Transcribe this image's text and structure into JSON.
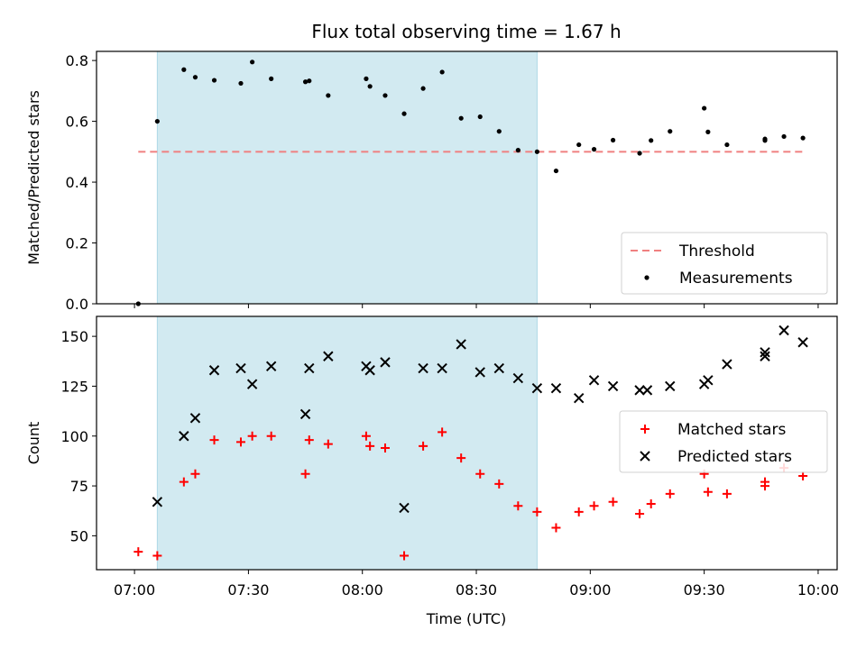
{
  "chart_data": {
    "title": "Flux total observing time = 1.67 h",
    "xlabel": "Time (UTC)",
    "xlim": [
      "06:50",
      "10:05"
    ],
    "x_ticks": [
      "07:00",
      "07:30",
      "08:00",
      "08:30",
      "09:00",
      "09:30",
      "10:00"
    ],
    "shaded_span": {
      "from": "07:06",
      "to": "08:46",
      "color": "#add8e6"
    },
    "panels": [
      {
        "type": "scatter",
        "ylabel": "Matched/Predicted stars",
        "ylim": [
          0,
          0.83
        ],
        "y_ticks": [
          "0.0",
          "0.2",
          "0.4",
          "0.6",
          "0.8"
        ],
        "legend_position": "lower-right",
        "threshold": {
          "name": "Threshold",
          "value": 0.5,
          "from": "07:01",
          "to": "09:57",
          "color": "#f08080",
          "style": "dashed"
        },
        "series": [
          {
            "name": "Measurements",
            "color": "#000000",
            "marker": "dot",
            "x": [
              "07:01",
              "07:06",
              "07:13",
              "07:16",
              "07:21",
              "07:28",
              "07:31",
              "07:36",
              "07:45",
              "07:46",
              "07:51",
              "08:01",
              "08:02",
              "08:06",
              "08:11",
              "08:16",
              "08:21",
              "08:26",
              "08:31",
              "08:36",
              "08:41",
              "08:46",
              "08:51",
              "08:57",
              "09:01",
              "09:06",
              "09:13",
              "09:16",
              "09:21",
              "09:30",
              "09:31",
              "09:36",
              "09:46",
              "09:46",
              "09:51",
              "09:56"
            ],
            "y": [
              0.0,
              0.6,
              0.77,
              0.745,
              0.735,
              0.725,
              0.795,
              0.74,
              0.73,
              0.733,
              0.685,
              0.74,
              0.715,
              0.685,
              0.625,
              0.708,
              0.762,
              0.61,
              0.615,
              0.567,
              0.505,
              0.5,
              0.437,
              0.523,
              0.508,
              0.538,
              0.495,
              0.537,
              0.567,
              0.643,
              0.565,
              0.523,
              0.542,
              0.537,
              0.55,
              0.545
            ]
          }
        ]
      },
      {
        "type": "scatter",
        "ylabel": "Count",
        "ylim": [
          33,
          160
        ],
        "y_ticks": [
          "50",
          "75",
          "100",
          "125",
          "150"
        ],
        "legend_position": "center-right",
        "series": [
          {
            "name": "Matched stars",
            "color": "#ff0000",
            "marker": "plus",
            "x": [
              "07:01",
              "07:06",
              "07:13",
              "07:16",
              "07:21",
              "07:28",
              "07:31",
              "07:36",
              "07:45",
              "07:46",
              "07:51",
              "08:01",
              "08:02",
              "08:06",
              "08:11",
              "08:16",
              "08:21",
              "08:26",
              "08:31",
              "08:36",
              "08:41",
              "08:46",
              "08:51",
              "08:57",
              "09:01",
              "09:06",
              "09:13",
              "09:16",
              "09:21",
              "09:30",
              "09:31",
              "09:36",
              "09:46",
              "09:46",
              "09:51",
              "09:56"
            ],
            "y": [
              42,
              40,
              77,
              81,
              98,
              97,
              100,
              100,
              81,
              98,
              96,
              100,
              95,
              94,
              40,
              95,
              102,
              89,
              81,
              76,
              65,
              62,
              54,
              62,
              65,
              67,
              61,
              66,
              71,
              81,
              72,
              71,
              77,
              75,
              84,
              80
            ]
          },
          {
            "name": "Predicted stars",
            "color": "#000000",
            "marker": "x",
            "x": [
              "07:06",
              "07:13",
              "07:16",
              "07:21",
              "07:28",
              "07:31",
              "07:36",
              "07:45",
              "07:46",
              "07:51",
              "08:01",
              "08:02",
              "08:06",
              "08:11",
              "08:16",
              "08:21",
              "08:26",
              "08:31",
              "08:36",
              "08:41",
              "08:46",
              "08:51",
              "08:57",
              "09:01",
              "09:06",
              "09:13",
              "09:15",
              "09:21",
              "09:30",
              "09:31",
              "09:36",
              "09:46",
              "09:46",
              "09:51",
              "09:56"
            ],
            "y": [
              67,
              100,
              109,
              133,
              134,
              126,
              135,
              111,
              134,
              140,
              135,
              133,
              137,
              64,
              134,
              134,
              146,
              132,
              134,
              129,
              124,
              124,
              119,
              128,
              125,
              123,
              123,
              125,
              126,
              128,
              136,
              142,
              140,
              153,
              147
            ]
          }
        ]
      }
    ]
  }
}
